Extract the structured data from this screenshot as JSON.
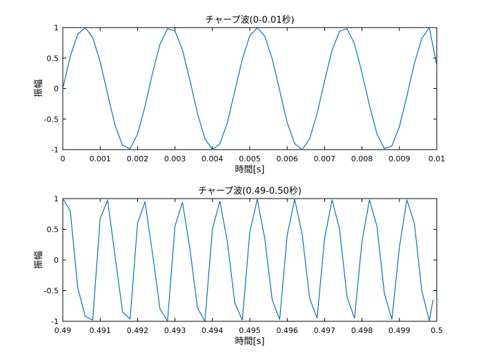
{
  "chart_data": [
    {
      "type": "line",
      "title": "チャープ波(0-0.01秒)",
      "xlabel": "時間[s]",
      "ylabel": "振幅",
      "xlim": [
        0,
        0.01
      ],
      "ylim": [
        -1,
        1
      ],
      "xticks": [
        "0",
        "0.001",
        "0.002",
        "0.003",
        "0.004",
        "0.005",
        "0.006",
        "0.007",
        "0.008",
        "0.009",
        "0.01"
      ],
      "yticks": [
        "-1",
        "-0.5",
        "0",
        "0.5",
        "1"
      ],
      "grid": false,
      "color": "#0072BD",
      "series": [
        {
          "x": [
            0,
            0.0002,
            0.0004,
            0.0006,
            0.0008,
            0.001,
            0.0012,
            0.0014,
            0.0016,
            0.0018,
            0.002,
            0.0022,
            0.0024,
            0.0026,
            0.0028,
            0.003,
            0.0032,
            0.0034,
            0.0036,
            0.0038,
            0.004,
            0.0042,
            0.0044,
            0.0046,
            0.0048,
            0.005,
            0.0052,
            0.0054,
            0.0056,
            0.0058,
            0.006,
            0.0062,
            0.0064,
            0.0066,
            0.0068,
            0.007,
            0.0072,
            0.0074,
            0.0076,
            0.0078,
            0.008,
            0.0082,
            0.0084,
            0.0086,
            0.0088,
            0.009,
            0.0092,
            0.0094,
            0.0096,
            0.0098,
            0.01
          ],
          "values": [
            0,
            0.525,
            0.891,
            0.999,
            0.838,
            0.44,
            -0.093,
            -0.606,
            -0.933,
            -0.985,
            -0.746,
            -0.287,
            0.254,
            0.73,
            0.981,
            0.944,
            0.635,
            0.135,
            -0.404,
            -0.819,
            -1.0,
            -0.905,
            -0.56,
            -0.04,
            0.481,
            0.866,
            0.997,
            0.861,
            0.487,
            -0.033,
            -0.555,
            -0.902,
            -0.999,
            -0.823,
            -0.41,
            0.126,
            0.627,
            0.94,
            0.982,
            0.734,
            0.262,
            -0.276,
            -0.741,
            -0.983,
            -0.939,
            -0.626,
            -0.125,
            0.411,
            0.824,
            0.999,
            0.38
          ]
        }
      ]
    },
    {
      "type": "line",
      "title": "チャープ波(0.49-0.50秒)",
      "xlabel": "時間[s]",
      "ylabel": "振幅",
      "xlim": [
        0.49,
        0.5
      ],
      "ylim": [
        -1,
        1
      ],
      "xticks": [
        "0.49",
        "0.491",
        "0.492",
        "0.493",
        "0.494",
        "0.495",
        "0.496",
        "0.497",
        "0.498",
        "0.499",
        "0.5"
      ],
      "yticks": [
        "-1",
        "-0.5",
        "0",
        "0.5",
        "1"
      ],
      "grid": false,
      "color": "#0072BD",
      "series": [
        {
          "x": [
            0.49,
            0.4902,
            0.4904,
            0.4906,
            0.4908,
            0.491,
            0.4912,
            0.4914,
            0.4916,
            0.4918,
            0.492,
            0.4922,
            0.4924,
            0.4926,
            0.4928,
            0.493,
            0.4932,
            0.4934,
            0.4936,
            0.4938,
            0.494,
            0.4942,
            0.4944,
            0.4946,
            0.4948,
            0.495,
            0.4952,
            0.4954,
            0.4956,
            0.4958,
            0.496,
            0.4962,
            0.4964,
            0.4966,
            0.4968,
            0.497,
            0.4972,
            0.4974,
            0.4976,
            0.4978,
            0.498,
            0.4982,
            0.4984,
            0.4986,
            0.4988,
            0.499,
            0.4992,
            0.4994,
            0.4996,
            0.4998,
            0.4999
          ],
          "values": [
            1.0,
            0.8,
            -0.45,
            -0.92,
            -0.98,
            0.68,
            0.97,
            0.05,
            -0.85,
            -0.96,
            0.6,
            0.95,
            0.1,
            -0.8,
            -1.0,
            0.55,
            0.94,
            0.18,
            -0.78,
            -1.0,
            0.5,
            0.96,
            0.3,
            -0.7,
            -0.98,
            0.45,
            0.99,
            0.35,
            -0.65,
            -0.97,
            0.4,
            0.99,
            0.42,
            -0.62,
            -0.95,
            0.35,
            0.98,
            0.5,
            -0.6,
            -0.95,
            0.3,
            0.98,
            0.55,
            -0.55,
            -0.97,
            0.2,
            0.98,
            0.6,
            -0.5,
            -0.99,
            -0.65
          ]
        }
      ]
    }
  ]
}
